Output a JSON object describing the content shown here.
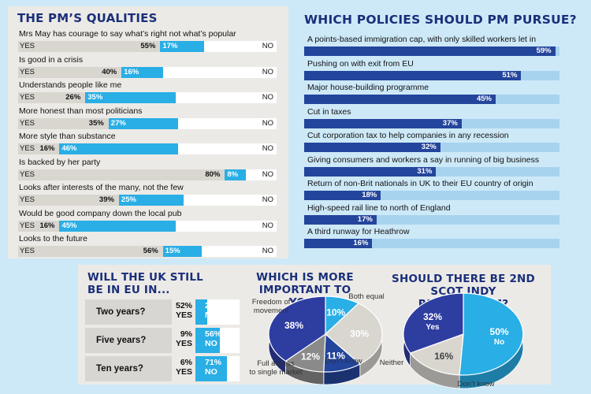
{
  "qualities": {
    "title": "THE PM’S QUALITIES",
    "yes_label": "YES",
    "no_label": "NO",
    "items": [
      {
        "text": "Mrs May has courage to say what’s right not what’s popular",
        "yes": 55,
        "no": 17,
        "yes_label": "55%",
        "no_label": "17%"
      },
      {
        "text": "Is good in a crisis",
        "yes": 40,
        "no": 16,
        "yes_label": "40%",
        "no_label": "16%"
      },
      {
        "text": "Understands people like me",
        "yes": 26,
        "no": 35,
        "yes_label": "26%",
        "no_label": "35%"
      },
      {
        "text": "More honest than most politicians",
        "yes": 35,
        "no": 27,
        "yes_label": "35%",
        "no_label": "27%"
      },
      {
        "text": "More style than substance",
        "yes": 16,
        "no": 46,
        "yes_label": "16%",
        "no_label": "46%"
      },
      {
        "text": "Is backed by her party",
        "yes": 80,
        "no": 8,
        "yes_label": "80%",
        "no_label": "8%"
      },
      {
        "text": "Looks after interests of the many, not the few",
        "yes": 39,
        "no": 25,
        "yes_label": "39%",
        "no_label": "25%"
      },
      {
        "text": "Would be good company down the local pub",
        "yes": 16,
        "no": 45,
        "yes_label": "16%",
        "no_label": "45%"
      },
      {
        "text": "Looks to the future",
        "yes": 56,
        "no": 15,
        "yes_label": "56%",
        "no_label": "15%"
      }
    ]
  },
  "policies": {
    "title": "WHICH POLICIES SHOULD PM PURSUE?",
    "items": [
      {
        "text": "A points-based immigration cap, with only skilled workers let in",
        "value": 59,
        "label": "59%"
      },
      {
        "text": "Pushing on with exit from EU",
        "value": 51,
        "label": "51%"
      },
      {
        "text": "Major house-building programme",
        "value": 45,
        "label": "45%"
      },
      {
        "text": "Cut in taxes",
        "value": 37,
        "label": "37%"
      },
      {
        "text": "Cut corporation tax to help companies in any recession",
        "value": 32,
        "label": "32%"
      },
      {
        "text": "Giving consumers and workers a say in running of big business",
        "value": 31,
        "label": "31%"
      },
      {
        "text": "Return of non-Brit nationals in UK to their EU country of origin",
        "value": 18,
        "label": "18%"
      },
      {
        "text": "High-speed rail line to north of England",
        "value": 17,
        "label": "17%"
      },
      {
        "text": "A third runway for Heathrow",
        "value": 16,
        "label": "16%"
      }
    ]
  },
  "eu": {
    "title_line1": "WILL THE UK STILL",
    "title_line2": "BE IN EU IN...",
    "rows": [
      {
        "label": "Two years?",
        "yes": 52,
        "no": 26,
        "yes_text": "52%",
        "yes_word": "YES",
        "no_text": "26%",
        "no_word": "NO"
      },
      {
        "label": "Five years?",
        "yes": 9,
        "no": 56,
        "yes_text": "9%",
        "yes_word": "YES",
        "no_text": "56%",
        "no_word": "NO"
      },
      {
        "label": "Ten years?",
        "yes": 6,
        "no": 71,
        "yes_text": "6%",
        "yes_word": "YES",
        "no_text": "71%",
        "no_word": "NO"
      }
    ]
  },
  "important": {
    "title_line1": "WHICH IS MORE",
    "title_line2": "IMPORTANT TO YOU?",
    "slices": [
      {
        "name_lines": [
          "Freedom of",
          "movement"
        ],
        "value": 10,
        "label": "10%",
        "color": "#29aee6"
      },
      {
        "name_lines": [
          "Both equal"
        ],
        "value": 30,
        "label": "30%",
        "color": "#d9d6d0"
      },
      {
        "name_lines": [
          "Neither"
        ],
        "value": 11,
        "label": "11%",
        "color": "#24459c"
      },
      {
        "name_lines": [
          "Don’t know"
        ],
        "value": 12,
        "label": "12%",
        "color": "#8a8a8a"
      },
      {
        "name_lines": [
          "Full access",
          "to single market"
        ],
        "value": 38,
        "label": "38%",
        "color": "#2e3da0"
      }
    ]
  },
  "scot": {
    "title_line1": "SHOULD THERE BE 2ND",
    "title_line2": "SCOT INDY REFERENDUM?",
    "slices": [
      {
        "name": "No",
        "value": 50,
        "label": "50%",
        "color": "#29aee6"
      },
      {
        "name": "Don’t know",
        "value": 16,
        "label": "16%",
        "color": "#d9d6d0"
      },
      {
        "name": "Yes",
        "value": 32,
        "label": "32%",
        "color": "#2e3da0"
      }
    ]
  },
  "chart_data": [
    {
      "type": "bar",
      "title": "THE PM’S QUALITIES",
      "categories": [
        "Mrs May has courage to say what’s right not what’s popular",
        "Is good in a crisis",
        "Understands people like me",
        "More honest than most politicians",
        "More style than substance",
        "Is backed by her party",
        "Looks after interests of the many, not the few",
        "Would be good company down the local pub",
        "Looks to the future"
      ],
      "series": [
        {
          "name": "YES",
          "values": [
            55,
            40,
            26,
            35,
            16,
            80,
            39,
            16,
            56
          ]
        },
        {
          "name": "NO",
          "values": [
            17,
            16,
            35,
            27,
            46,
            8,
            25,
            45,
            15
          ]
        }
      ]
    },
    {
      "type": "bar",
      "title": "WHICH POLICIES SHOULD PM PURSUE?",
      "categories": [
        "A points-based immigration cap, with only skilled workers let in",
        "Pushing on with exit from EU",
        "Major house-building programme",
        "Cut in taxes",
        "Cut corporation tax to help companies in any recession",
        "Giving consumers and workers a say in running of big business",
        "Return of non-Brit nationals in UK to their EU country of origin",
        "High-speed rail line to north of England",
        "A third runway for Heathrow"
      ],
      "values": [
        59,
        51,
        45,
        37,
        32,
        31,
        18,
        17,
        16
      ]
    },
    {
      "type": "bar",
      "title": "WILL THE UK STILL BE IN EU IN...",
      "categories": [
        "Two years?",
        "Five years?",
        "Ten years?"
      ],
      "series": [
        {
          "name": "YES",
          "values": [
            52,
            9,
            6
          ]
        },
        {
          "name": "NO",
          "values": [
            26,
            56,
            71
          ]
        }
      ]
    },
    {
      "type": "pie",
      "title": "WHICH IS MORE IMPORTANT TO YOU?",
      "categories": [
        "Freedom of movement",
        "Both equal",
        "Neither",
        "Don’t know",
        "Full access to single market"
      ],
      "values": [
        10,
        30,
        11,
        12,
        38
      ]
    },
    {
      "type": "pie",
      "title": "SHOULD THERE BE 2ND SCOT INDY REFERENDUM?",
      "categories": [
        "No",
        "Don’t know",
        "Yes"
      ],
      "values": [
        50,
        16,
        32
      ]
    }
  ]
}
